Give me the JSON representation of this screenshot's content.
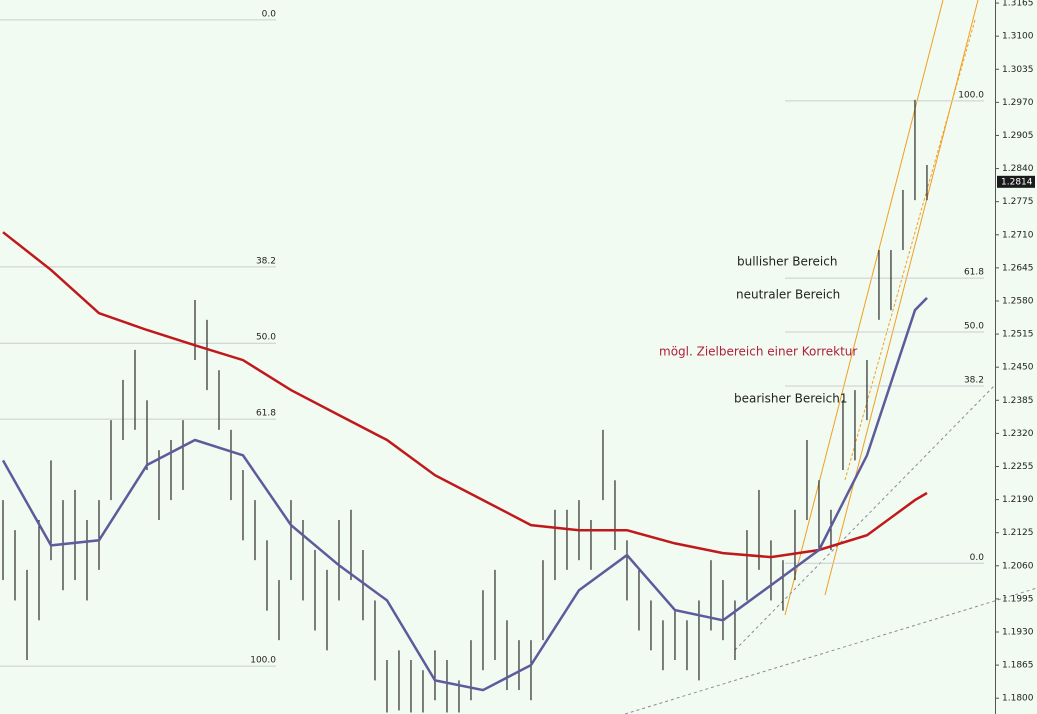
{
  "chart_data": {
    "type": "ohlc",
    "ylim": [
      1.1769,
      1.3171
    ],
    "xlim": [
      -0.25,
      82.67
    ],
    "yticks": [
      {
        "value": 1.3165,
        "label": "1.3165"
      },
      {
        "value": 1.31,
        "label": "1.3100"
      },
      {
        "value": 1.3035,
        "label": "1.3035"
      },
      {
        "value": 1.297,
        "label": "1.2970"
      },
      {
        "value": 1.2905,
        "label": "1.2905"
      },
      {
        "value": 1.284,
        "label": "1.2840"
      },
      {
        "value": 1.2775,
        "label": "1.2775"
      },
      {
        "value": 1.271,
        "label": "1.2710"
      },
      {
        "value": 1.2645,
        "label": "1.2645"
      },
      {
        "value": 1.258,
        "label": "1.2580"
      },
      {
        "value": 1.2515,
        "label": "1.2515"
      },
      {
        "value": 1.245,
        "label": "1.2450"
      },
      {
        "value": 1.2385,
        "label": "1.2385"
      },
      {
        "value": 1.232,
        "label": "1.2320"
      },
      {
        "value": 1.2255,
        "label": "1.2255"
      },
      {
        "value": 1.219,
        "label": "1.2190"
      },
      {
        "value": 1.2125,
        "label": "1.2125"
      },
      {
        "value": 1.206,
        "label": "1.2060"
      },
      {
        "value": 1.1995,
        "label": "1.1995"
      },
      {
        "value": 1.193,
        "label": "1.1930"
      },
      {
        "value": 1.1865,
        "label": "1.1865"
      },
      {
        "value": 1.18,
        "label": "1.1800"
      }
    ],
    "last_price": 1.2814,
    "bar_color": "#2a2a2a",
    "bars": {
      "high": [
        1.2189,
        1.213,
        1.2052,
        1.215,
        1.2267,
        1.2189,
        1.2209,
        1.215,
        1.2189,
        1.2346,
        1.2425,
        1.2484,
        1.2385,
        1.2287,
        1.2307,
        1.2346,
        1.2582,
        1.2543,
        1.2444,
        1.2327,
        1.2248,
        1.2189,
        1.211,
        1.2032,
        1.2189,
        1.215,
        1.2091,
        1.2052,
        1.215,
        1.217,
        1.2091,
        1.1992,
        1.1875,
        1.1894,
        1.1875,
        1.1855,
        1.1894,
        1.1875,
        1.1835,
        1.1914,
        1.2012,
        1.2052,
        1.1953,
        1.1914,
        1.1914,
        1.2071,
        1.217,
        1.217,
        1.2189,
        1.215,
        1.2327,
        1.2228,
        1.211,
        1.2052,
        1.1992,
        1.1953,
        1.1972,
        1.1953,
        1.1992,
        1.2071,
        1.2032,
        1.1992,
        1.213,
        1.2209,
        1.211,
        1.2071,
        1.217,
        1.2307,
        1.2228,
        1.217,
        1.2385,
        1.2405,
        1.2464,
        1.268,
        1.268,
        1.2798,
        1.2975,
        1.2847
      ],
      "low": [
        1.2032,
        1.1992,
        1.1875,
        1.1953,
        1.2071,
        1.2012,
        1.2032,
        1.1992,
        1.2052,
        1.2189,
        1.2307,
        1.2327,
        1.2248,
        1.215,
        1.2189,
        1.2209,
        1.2464,
        1.2405,
        1.2327,
        1.2189,
        1.211,
        1.2071,
        1.1972,
        1.1914,
        1.2032,
        1.1992,
        1.1933,
        1.1894,
        1.1992,
        1.2032,
        1.1953,
        1.1835,
        1.1772,
        1.1776,
        1.1772,
        1.1772,
        1.1796,
        1.1772,
        1.1772,
        1.1796,
        1.1855,
        1.1875,
        1.1816,
        1.1816,
        1.1796,
        1.1914,
        1.2032,
        1.2052,
        1.2071,
        1.2052,
        1.2189,
        1.2091,
        1.1992,
        1.1933,
        1.1894,
        1.1855,
        1.1875,
        1.1855,
        1.1835,
        1.1933,
        1.1914,
        1.1875,
        1.1992,
        1.2052,
        1.1992,
        1.1972,
        1.2032,
        1.215,
        1.2091,
        1.2091,
        1.2248,
        1.2267,
        1.2346,
        1.2543,
        1.2562,
        1.268,
        1.2778,
        1.2778
      ]
    },
    "series": [
      {
        "color": "#c0191c",
        "x": [
          0,
          4,
          8,
          12,
          16,
          20,
          24,
          28,
          32,
          36,
          40,
          44,
          48,
          52,
          56,
          60,
          64,
          68,
          72,
          76,
          77
        ],
        "values": [
          1.2715,
          1.2641,
          1.2556,
          1.2523,
          1.2493,
          1.2464,
          1.2405,
          1.2356,
          1.2307,
          1.2238,
          1.2189,
          1.214,
          1.213,
          1.213,
          1.2104,
          1.2085,
          1.2077,
          1.2091,
          1.212,
          1.2189,
          1.2203
        ]
      },
      {
        "color": "#5c5c9c",
        "x": [
          0,
          4,
          8,
          12,
          16,
          20,
          24,
          28,
          32,
          36,
          40,
          44,
          48,
          52,
          56,
          60,
          64,
          68,
          72,
          76,
          77
        ],
        "values": [
          1.2267,
          1.21,
          1.211,
          1.2258,
          1.2307,
          1.2277,
          1.214,
          1.2061,
          1.1992,
          1.1835,
          1.1816,
          1.1865,
          1.2012,
          1.2081,
          1.1973,
          1.1953,
          1.2022,
          1.2091,
          1.2277,
          1.2562,
          1.2586
        ]
      }
    ],
    "fib_left": [
      {
        "label": "0.0",
        "price": 1.3132
      },
      {
        "label": "38.2",
        "price": 1.2647
      },
      {
        "label": "50.0",
        "price": 1.2497
      },
      {
        "label": "61.8",
        "price": 1.2348
      },
      {
        "label": "100.0",
        "price": 1.1863
      }
    ],
    "fib_right": [
      {
        "label": "100.0",
        "price": 1.2973
      },
      {
        "label": "61.8",
        "price": 1.2625
      },
      {
        "label": "50.0",
        "price": 1.2519
      },
      {
        "label": "38.2",
        "price": 1.2413
      },
      {
        "label": "0.0",
        "price": 1.2065
      }
    ],
    "annotations": [
      "bullisher Bereich",
      "neutraler Bereich",
      "mögl. Zielbereich einer Korrektur",
      "bearisher Bereich1"
    ]
  }
}
